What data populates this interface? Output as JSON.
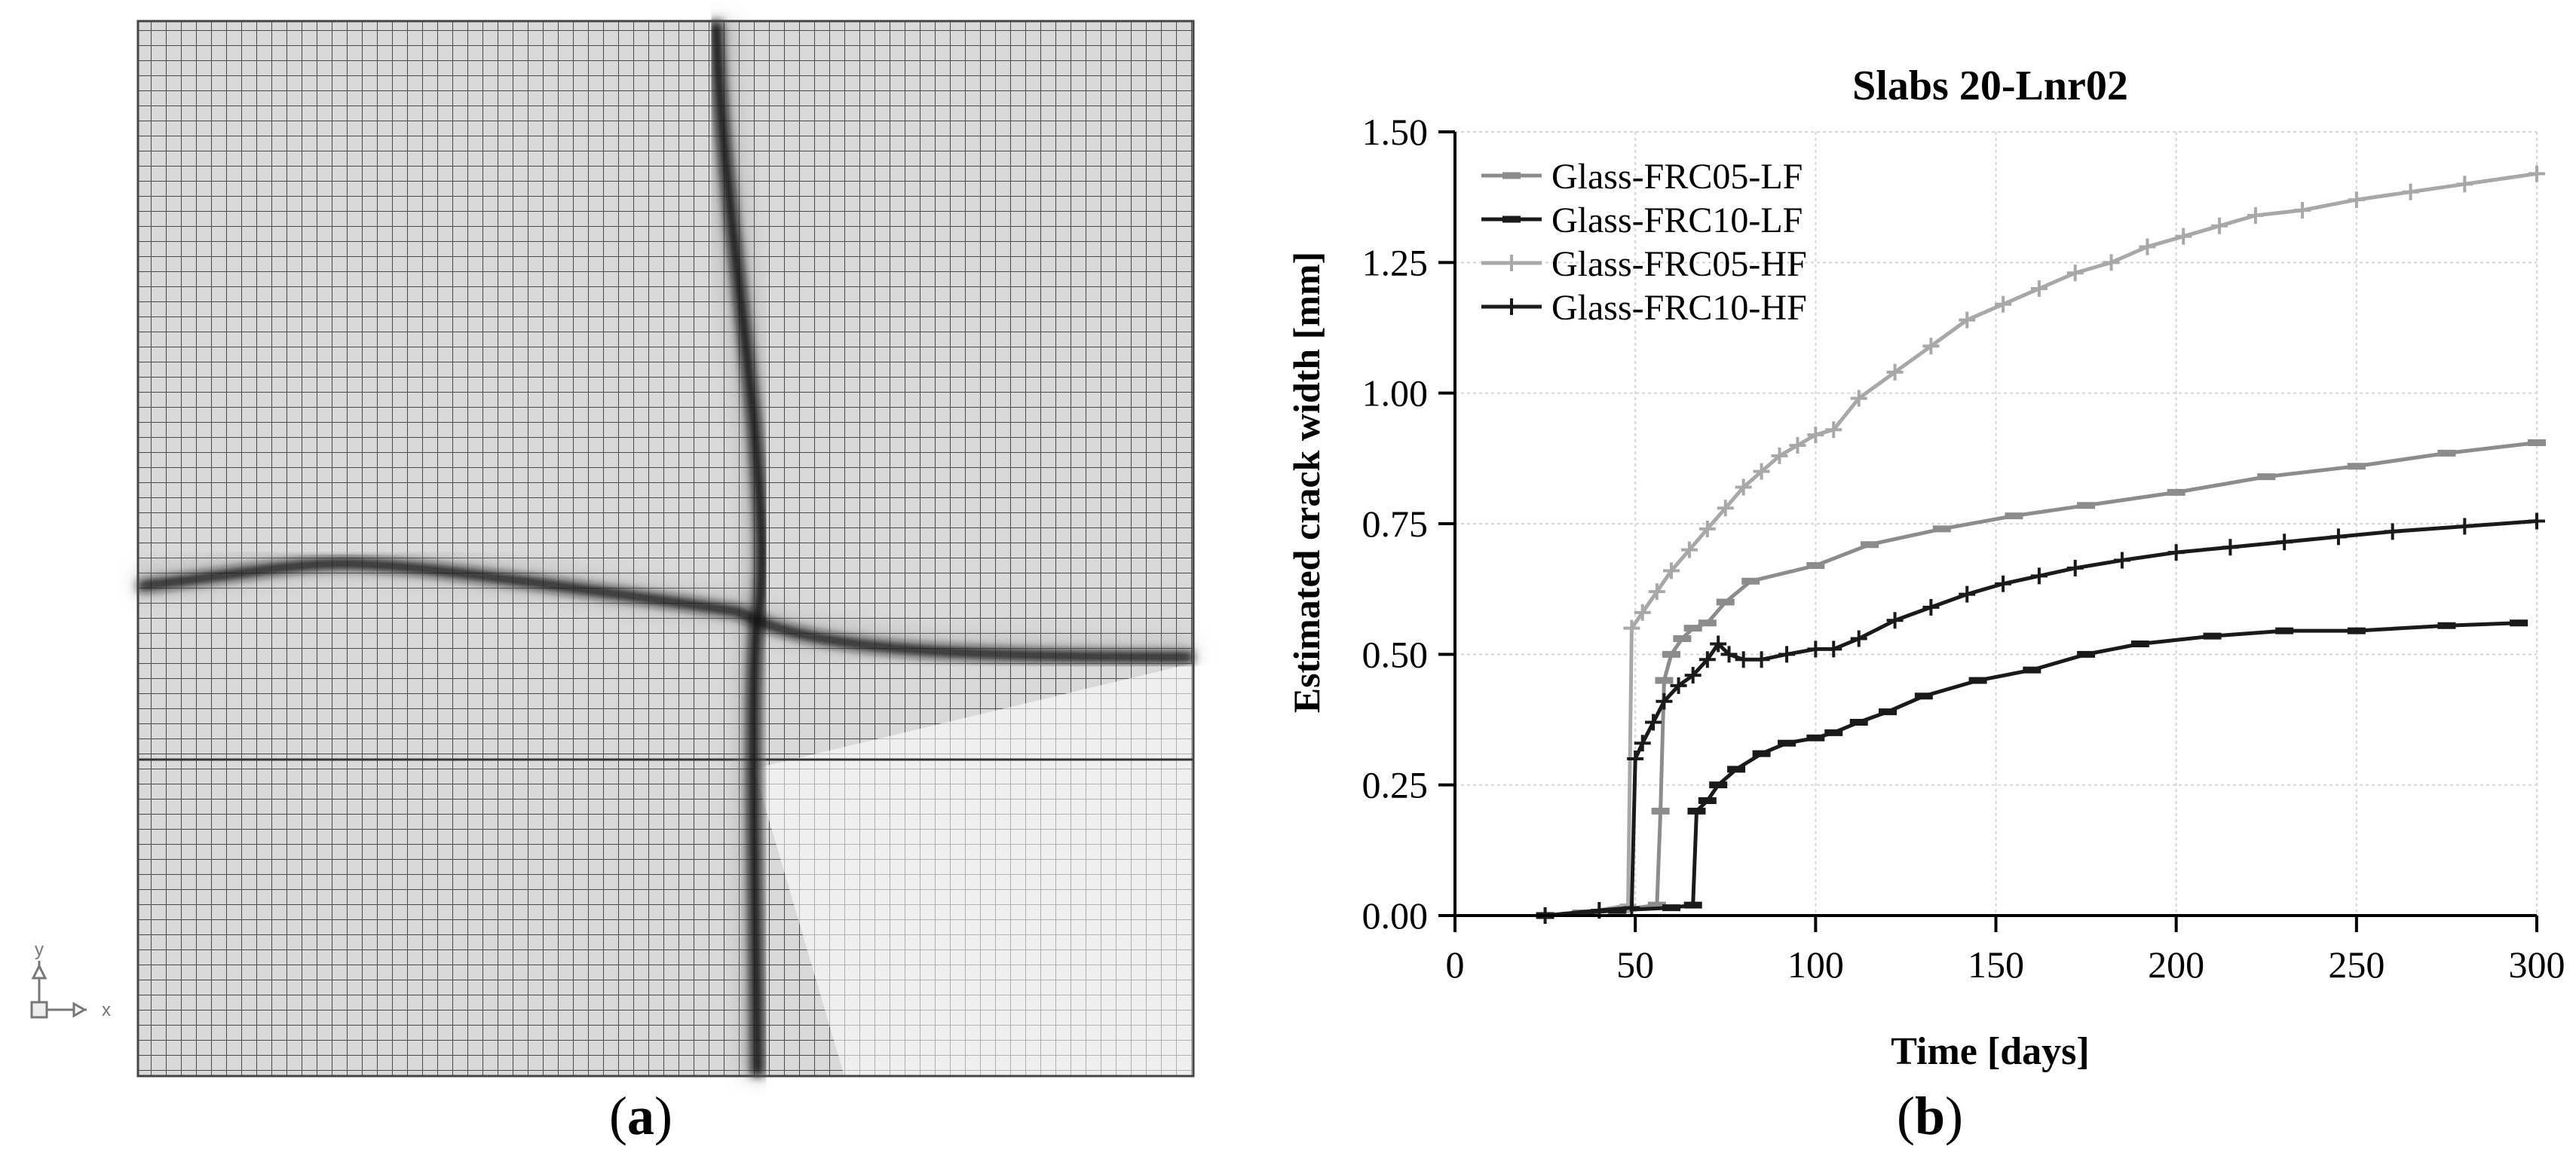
{
  "panels": {
    "a": {
      "letter": "a"
    },
    "b": {
      "letter": "b"
    }
  },
  "mesh": {
    "axes_icon": {
      "y": "y",
      "x": "x"
    }
  },
  "chart_data": {
    "type": "line",
    "title": "Slabs 20-Lnr02",
    "xlabel": "Time [days]",
    "ylabel": "Estimated crack width [mm]",
    "xlim": [
      0,
      300
    ],
    "ylim": [
      0,
      1.5
    ],
    "xticks": [
      "0",
      "50",
      "100",
      "150",
      "200",
      "250",
      "300"
    ],
    "yticks": [
      "0.00",
      "0.25",
      "0.50",
      "0.75",
      "1.00",
      "1.25",
      "1.50"
    ],
    "grid": true,
    "legend_position": "top-left",
    "series": [
      {
        "name": "Glass-FRC05-LF",
        "color": "#8c8c8c",
        "marker": "dash",
        "points": [
          [
            25,
            0.0
          ],
          [
            35,
            0.005
          ],
          [
            45,
            0.01
          ],
          [
            56,
            0.02
          ],
          [
            57,
            0.2
          ],
          [
            58,
            0.45
          ],
          [
            60,
            0.5
          ],
          [
            63,
            0.53
          ],
          [
            66,
            0.55
          ],
          [
            70,
            0.56
          ],
          [
            75,
            0.6
          ],
          [
            82,
            0.64
          ],
          [
            100,
            0.67
          ],
          [
            115,
            0.71
          ],
          [
            135,
            0.74
          ],
          [
            155,
            0.765
          ],
          [
            175,
            0.785
          ],
          [
            200,
            0.81
          ],
          [
            225,
            0.84
          ],
          [
            250,
            0.86
          ],
          [
            275,
            0.885
          ],
          [
            300,
            0.905
          ]
        ]
      },
      {
        "name": "Glass-FRC10-LF",
        "color": "#1a1a1a",
        "marker": "dash",
        "points": [
          [
            25,
            0.0
          ],
          [
            45,
            0.01
          ],
          [
            60,
            0.015
          ],
          [
            66,
            0.02
          ],
          [
            67,
            0.2
          ],
          [
            70,
            0.22
          ],
          [
            73,
            0.25
          ],
          [
            78,
            0.28
          ],
          [
            85,
            0.31
          ],
          [
            92,
            0.33
          ],
          [
            100,
            0.34
          ],
          [
            105,
            0.35
          ],
          [
            112,
            0.37
          ],
          [
            120,
            0.39
          ],
          [
            130,
            0.42
          ],
          [
            145,
            0.45
          ],
          [
            160,
            0.47
          ],
          [
            175,
            0.5
          ],
          [
            190,
            0.52
          ],
          [
            210,
            0.535
          ],
          [
            230,
            0.545
          ],
          [
            250,
            0.545
          ],
          [
            275,
            0.555
          ],
          [
            295,
            0.56
          ]
        ]
      },
      {
        "name": "Glass-FRC05-HF",
        "color": "#a8a8a8",
        "marker": "plus",
        "points": [
          [
            25,
            0.0
          ],
          [
            40,
            0.01
          ],
          [
            48,
            0.02
          ],
          [
            49,
            0.55
          ],
          [
            52,
            0.58
          ],
          [
            56,
            0.62
          ],
          [
            60,
            0.66
          ],
          [
            65,
            0.7
          ],
          [
            70,
            0.74
          ],
          [
            75,
            0.78
          ],
          [
            80,
            0.82
          ],
          [
            85,
            0.85
          ],
          [
            90,
            0.88
          ],
          [
            95,
            0.9
          ],
          [
            100,
            0.92
          ],
          [
            105,
            0.93
          ],
          [
            112,
            0.99
          ],
          [
            122,
            1.04
          ],
          [
            132,
            1.09
          ],
          [
            142,
            1.14
          ],
          [
            152,
            1.17
          ],
          [
            162,
            1.2
          ],
          [
            172,
            1.23
          ],
          [
            182,
            1.25
          ],
          [
            192,
            1.28
          ],
          [
            202,
            1.3
          ],
          [
            212,
            1.32
          ],
          [
            222,
            1.34
          ],
          [
            235,
            1.35
          ],
          [
            250,
            1.37
          ],
          [
            265,
            1.385
          ],
          [
            280,
            1.4
          ],
          [
            300,
            1.42
          ]
        ]
      },
      {
        "name": "Glass-FRC10-HF",
        "color": "#1a1a1a",
        "marker": "plus",
        "points": [
          [
            25,
            0.0
          ],
          [
            40,
            0.01
          ],
          [
            49,
            0.015
          ],
          [
            50,
            0.3
          ],
          [
            52,
            0.33
          ],
          [
            55,
            0.37
          ],
          [
            58,
            0.41
          ],
          [
            62,
            0.44
          ],
          [
            66,
            0.46
          ],
          [
            70,
            0.49
          ],
          [
            73,
            0.52
          ],
          [
            76,
            0.5
          ],
          [
            80,
            0.49
          ],
          [
            85,
            0.49
          ],
          [
            92,
            0.5
          ],
          [
            100,
            0.51
          ],
          [
            105,
            0.51
          ],
          [
            112,
            0.53
          ],
          [
            122,
            0.565
          ],
          [
            132,
            0.59
          ],
          [
            142,
            0.615
          ],
          [
            152,
            0.635
          ],
          [
            162,
            0.65
          ],
          [
            172,
            0.665
          ],
          [
            185,
            0.68
          ],
          [
            200,
            0.695
          ],
          [
            215,
            0.705
          ],
          [
            230,
            0.715
          ],
          [
            245,
            0.725
          ],
          [
            260,
            0.735
          ],
          [
            280,
            0.745
          ],
          [
            300,
            0.755
          ]
        ]
      }
    ]
  }
}
